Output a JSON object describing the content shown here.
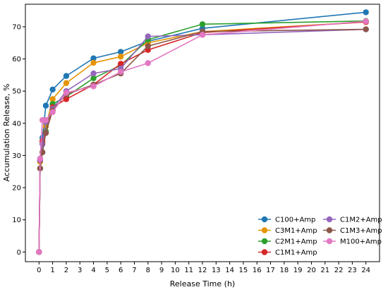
{
  "chart_data": {
    "type": "line",
    "xlabel": "Release Time (h)",
    "ylabel": "Accumulation Release, %",
    "xlim": [
      -1,
      25
    ],
    "ylim": [
      -3,
      77
    ],
    "xticks": [
      0,
      1,
      2,
      3,
      4,
      5,
      6,
      7,
      8,
      9,
      10,
      11,
      12,
      13,
      14,
      15,
      16,
      17,
      18,
      19,
      20,
      21,
      22,
      23,
      24
    ],
    "yticks": [
      0,
      10,
      20,
      30,
      40,
      50,
      60,
      70
    ],
    "grid": false,
    "legend_position": "bottom-right",
    "series": [
      {
        "name": "C100+Amp",
        "color": "#1f77b4",
        "x": [
          0,
          0.083,
          0.25,
          0.5,
          1,
          2,
          4,
          6,
          8,
          12,
          24
        ],
        "y": [
          0,
          29,
          35.5,
          45.5,
          50.5,
          54.7,
          60.2,
          62.2,
          65.5,
          69.5,
          74.5
        ]
      },
      {
        "name": "C3M1+Amp",
        "color": "#e59400",
        "x": [
          0,
          0.083,
          0.25,
          0.5,
          1,
          2,
          4,
          6,
          8,
          12,
          24
        ],
        "y": [
          0,
          28,
          34,
          39,
          47.5,
          52.5,
          58.8,
          60.7,
          65,
          68.5,
          71.5
        ]
      },
      {
        "name": "C2M1+Amp",
        "color": "#2ca02c",
        "x": [
          0,
          0.083,
          0.25,
          0.5,
          1,
          2,
          4,
          6,
          8,
          12,
          24
        ],
        "y": [
          0,
          26,
          31,
          37.5,
          46,
          48.3,
          54,
          58,
          66,
          70.8,
          71.8
        ]
      },
      {
        "name": "C1M1+Amp",
        "color": "#d62728",
        "x": [
          0,
          0.083,
          0.25,
          0.5,
          1,
          2,
          4,
          6,
          8,
          12,
          24
        ],
        "y": [
          0,
          28.5,
          34.5,
          37,
          45,
          47.5,
          52,
          58.5,
          62.8,
          68.2,
          71.5
        ]
      },
      {
        "name": "C1M2+Amp",
        "color": "#9467bd",
        "x": [
          0,
          0.083,
          0.25,
          0.5,
          1,
          2,
          4,
          6,
          8,
          12,
          24
        ],
        "y": [
          0,
          28.5,
          33.5,
          40.5,
          44.5,
          50,
          55.5,
          57,
          67,
          67.5,
          69.2
        ]
      },
      {
        "name": "C1M3+Amp",
        "color": "#8c564b",
        "x": [
          0,
          0.083,
          0.25,
          0.5,
          1,
          2,
          4,
          6,
          8,
          12,
          24
        ],
        "y": [
          0,
          26,
          31,
          37,
          44,
          49,
          52,
          55.5,
          64,
          68.5,
          69.2
        ]
      },
      {
        "name": "M100+Amp",
        "color": "#e377c2",
        "x": [
          0,
          0.083,
          0.25,
          0.5,
          1,
          2,
          4,
          6,
          8,
          12,
          24
        ],
        "y": [
          0,
          29,
          41,
          41,
          43.5,
          49.5,
          51.5,
          56,
          58.7,
          67.5,
          71.7
        ]
      }
    ]
  }
}
